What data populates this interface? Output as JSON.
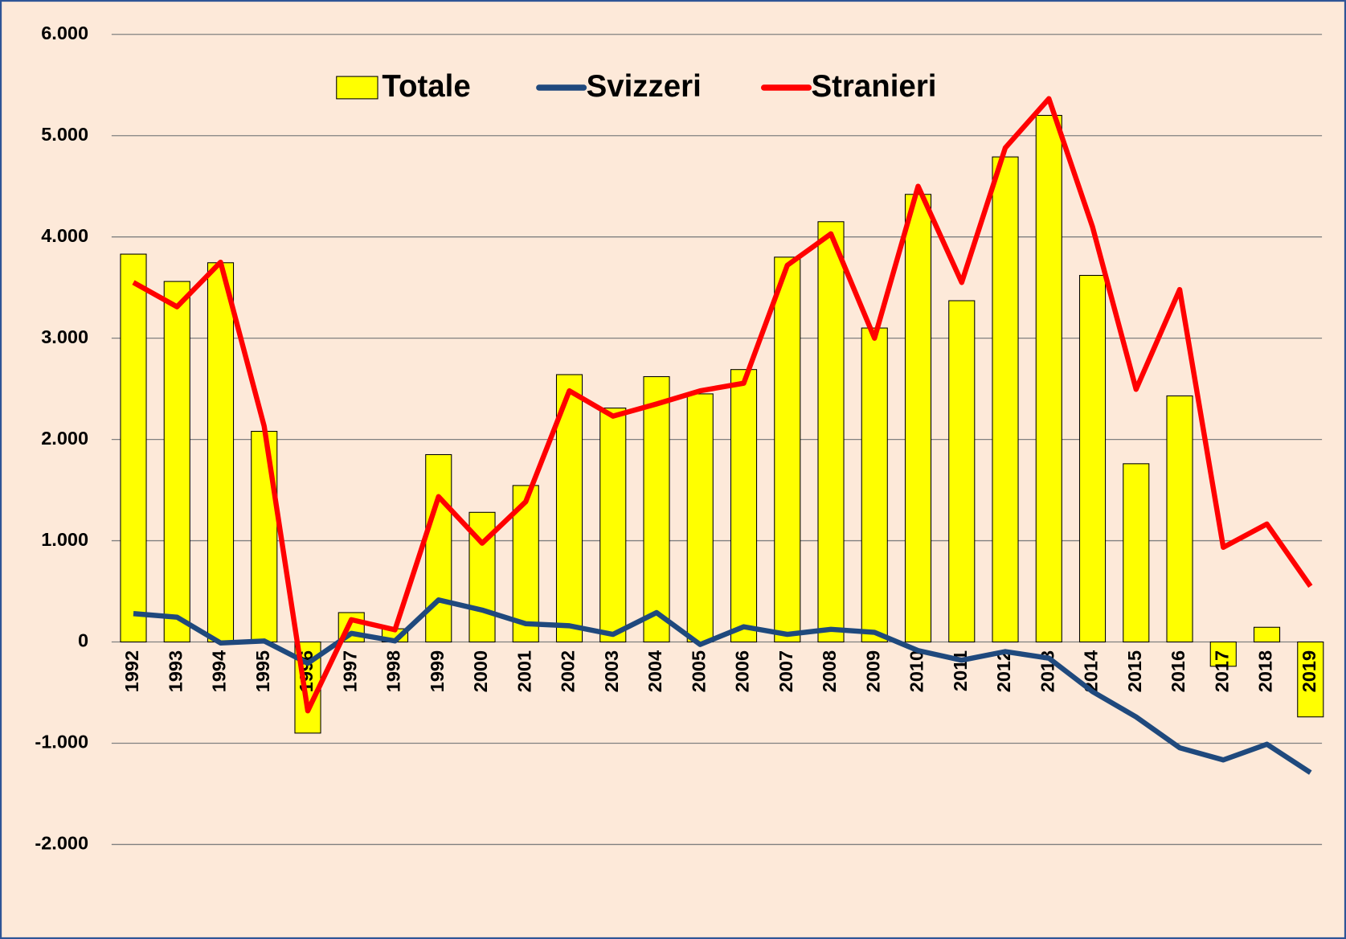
{
  "chart_data": {
    "type": "bar",
    "categories": [
      "1992",
      "1993",
      "1994",
      "1995",
      "1996",
      "1997",
      "1998",
      "1999",
      "2000",
      "2001",
      "2002",
      "2003",
      "2004",
      "2005",
      "2006",
      "2007",
      "2008",
      "2009",
      "2010",
      "2011",
      "2012",
      "2013",
      "2014",
      "2015",
      "2016",
      "2017",
      "2018",
      "2019"
    ],
    "series": [
      {
        "name": "Totale",
        "type": "bar",
        "color": "#ffff00",
        "values": [
          3830,
          3560,
          3745,
          2080,
          -900,
          290,
          130,
          1850,
          1280,
          1545,
          2640,
          2310,
          2620,
          2450,
          2690,
          3800,
          4150,
          3100,
          4420,
          3370,
          4790,
          5200,
          3620,
          1760,
          2430,
          -240,
          145,
          -740
        ]
      },
      {
        "name": "Svizzeri",
        "type": "line",
        "color": "#1f497d",
        "values": [
          280,
          245,
          -10,
          10,
          -210,
          85,
          10,
          415,
          315,
          180,
          160,
          75,
          290,
          -25,
          150,
          75,
          125,
          95,
          -85,
          -180,
          -95,
          -160,
          -490,
          -740,
          -1045,
          -1165,
          -1010,
          -1290
        ]
      },
      {
        "name": "Stranieri",
        "type": "line",
        "color": "#ff0000",
        "values": [
          3550,
          3310,
          3750,
          2130,
          -680,
          220,
          120,
          1435,
          975,
          1385,
          2480,
          2230,
          2350,
          2480,
          2555,
          3720,
          4030,
          3000,
          4500,
          3550,
          4880,
          5365,
          4100,
          2495,
          3480,
          935,
          1165,
          550
        ]
      }
    ],
    "ylim": [
      -2950,
      6000
    ],
    "yticks": [
      {
        "value": -2000,
        "label": "-2.000"
      },
      {
        "value": -1000,
        "label": "-1.000"
      },
      0,
      {
        "value": 1000,
        "label": "1.000"
      },
      {
        "value": 2000,
        "label": "2.000"
      },
      {
        "value": 3000,
        "label": "3.000"
      },
      {
        "value": 4000,
        "label": "4.000"
      },
      {
        "value": 5000,
        "label": "5.000"
      },
      {
        "value": 6000,
        "label": "6.000"
      }
    ],
    "grid": true
  }
}
